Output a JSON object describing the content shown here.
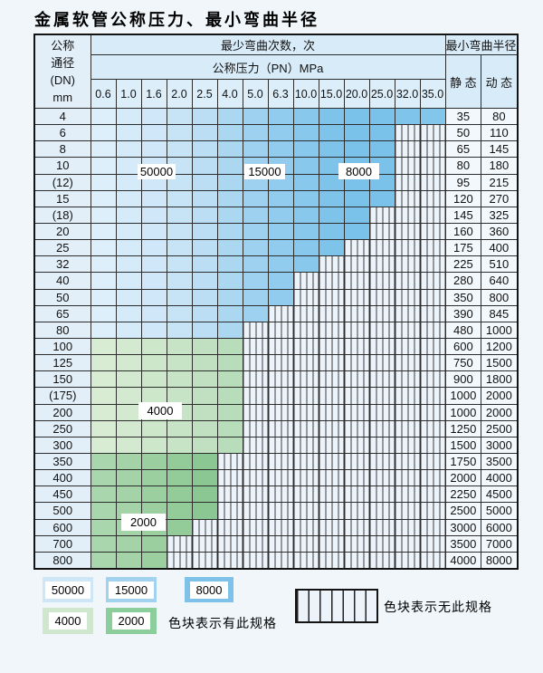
{
  "title": "金属软管公称压力、最小弯曲半径",
  "table": {
    "header": {
      "dn_lines": [
        "公称",
        "通径",
        "(DN)",
        "mm"
      ],
      "cycles_header": "最少弯曲次数，次",
      "pressure_header": "公称压力（PN）MPa",
      "radius_header": "最小弯曲半径",
      "static_label": "静 态",
      "dynamic_label": "动 态",
      "pressures": [
        "0.6",
        "1.0",
        "1.6",
        "2.0",
        "2.5",
        "4.0",
        "5.0",
        "6.3",
        "10.0",
        "15.0",
        "20.0",
        "25.0",
        "32.0",
        "35.0"
      ]
    },
    "rows": [
      {
        "dn": "4",
        "static": "35",
        "dynamic": "80",
        "colored": 14,
        "zone": "blue"
      },
      {
        "dn": "6",
        "static": "50",
        "dynamic": "110",
        "colored": 12,
        "zone": "blue"
      },
      {
        "dn": "8",
        "static": "65",
        "dynamic": "145",
        "colored": 12,
        "zone": "blue"
      },
      {
        "dn": "10",
        "static": "80",
        "dynamic": "180",
        "colored": 12,
        "zone": "blue"
      },
      {
        "dn": "(12)",
        "static": "95",
        "dynamic": "215",
        "colored": 12,
        "zone": "blue"
      },
      {
        "dn": "15",
        "static": "120",
        "dynamic": "270",
        "colored": 12,
        "zone": "blue"
      },
      {
        "dn": "(18)",
        "static": "145",
        "dynamic": "325",
        "colored": 11,
        "zone": "blue"
      },
      {
        "dn": "20",
        "static": "160",
        "dynamic": "360",
        "colored": 11,
        "zone": "blue"
      },
      {
        "dn": "25",
        "static": "175",
        "dynamic": "400",
        "colored": 10,
        "zone": "blue"
      },
      {
        "dn": "32",
        "static": "225",
        "dynamic": "510",
        "colored": 9,
        "zone": "blue"
      },
      {
        "dn": "40",
        "static": "280",
        "dynamic": "640",
        "colored": 8,
        "zone": "blue"
      },
      {
        "dn": "50",
        "static": "350",
        "dynamic": "800",
        "colored": 8,
        "zone": "blue"
      },
      {
        "dn": "65",
        "static": "390",
        "dynamic": "845",
        "colored": 7,
        "zone": "blue"
      },
      {
        "dn": "80",
        "static": "480",
        "dynamic": "1000",
        "colored": 6,
        "zone": "blue"
      },
      {
        "dn": "100",
        "static": "600",
        "dynamic": "1200",
        "colored": 6,
        "zone": "green4000"
      },
      {
        "dn": "125",
        "static": "750",
        "dynamic": "1500",
        "colored": 6,
        "zone": "green4000"
      },
      {
        "dn": "150",
        "static": "900",
        "dynamic": "1800",
        "colored": 6,
        "zone": "green4000"
      },
      {
        "dn": "(175)",
        "static": "1000",
        "dynamic": "2000",
        "colored": 6,
        "zone": "green4000"
      },
      {
        "dn": "200",
        "static": "1000",
        "dynamic": "2000",
        "colored": 6,
        "zone": "green4000"
      },
      {
        "dn": "250",
        "static": "1250",
        "dynamic": "2500",
        "colored": 6,
        "zone": "green4000"
      },
      {
        "dn": "300",
        "static": "1500",
        "dynamic": "3000",
        "colored": 6,
        "zone": "green4000"
      },
      {
        "dn": "350",
        "static": "1750",
        "dynamic": "3500",
        "colored": 5,
        "zone": "green2000"
      },
      {
        "dn": "400",
        "static": "2000",
        "dynamic": "4000",
        "colored": 5,
        "zone": "green2000"
      },
      {
        "dn": "450",
        "static": "2250",
        "dynamic": "4500",
        "colored": 5,
        "zone": "green2000"
      },
      {
        "dn": "500",
        "static": "2500",
        "dynamic": "5000",
        "colored": 5,
        "zone": "green2000"
      },
      {
        "dn": "600",
        "static": "3000",
        "dynamic": "6000",
        "colored": 4,
        "zone": "green2000"
      },
      {
        "dn": "700",
        "static": "3500",
        "dynamic": "7000",
        "colored": 3,
        "zone": "green2000"
      },
      {
        "dn": "800",
        "static": "4000",
        "dynamic": "8000",
        "colored": 3,
        "zone": "green2000"
      }
    ]
  },
  "overlay_labels": [
    {
      "text": "50000"
    },
    {
      "text": "15000"
    },
    {
      "text": "8000"
    },
    {
      "text": "4000"
    },
    {
      "text": "2000"
    }
  ],
  "legend": {
    "swatches": [
      {
        "label": "50000",
        "color": "#cfe6f6"
      },
      {
        "label": "15000",
        "color": "#a3d2ef"
      },
      {
        "label": "8000",
        "color": "#7ec2e9"
      },
      {
        "label": "4000",
        "color": "#cfe7cd"
      },
      {
        "label": "2000",
        "color": "#8bce9c"
      }
    ],
    "has_spec_text": "色块表示有此规格",
    "no_spec_text": "色块表示无此规格"
  },
  "colors": {
    "blue_shades": [
      "#dceffb",
      "#d6ebf9",
      "#cfe7f8",
      "#c7e3f6",
      "#bcdef4",
      "#abd7f1",
      "#9ed1ef",
      "#91ccee",
      "#87c8ec",
      "#7ec4ea",
      "#7ac2e9",
      "#7ac2e9",
      "#7fc4ea",
      "#83c6eb"
    ],
    "green4000_shades": [
      "#d8ecd4",
      "#d3e9d0",
      "#cde7cb",
      "#c7e4c6",
      "#c0e0c1",
      "#b8ddbb"
    ],
    "green2000_shades": [
      "#aad6ad",
      "#a3d3a7",
      "#9bcfa0",
      "#93cb99",
      "#8bc793",
      "#84c48d"
    ],
    "hatch_bg": "#edf3fa"
  }
}
